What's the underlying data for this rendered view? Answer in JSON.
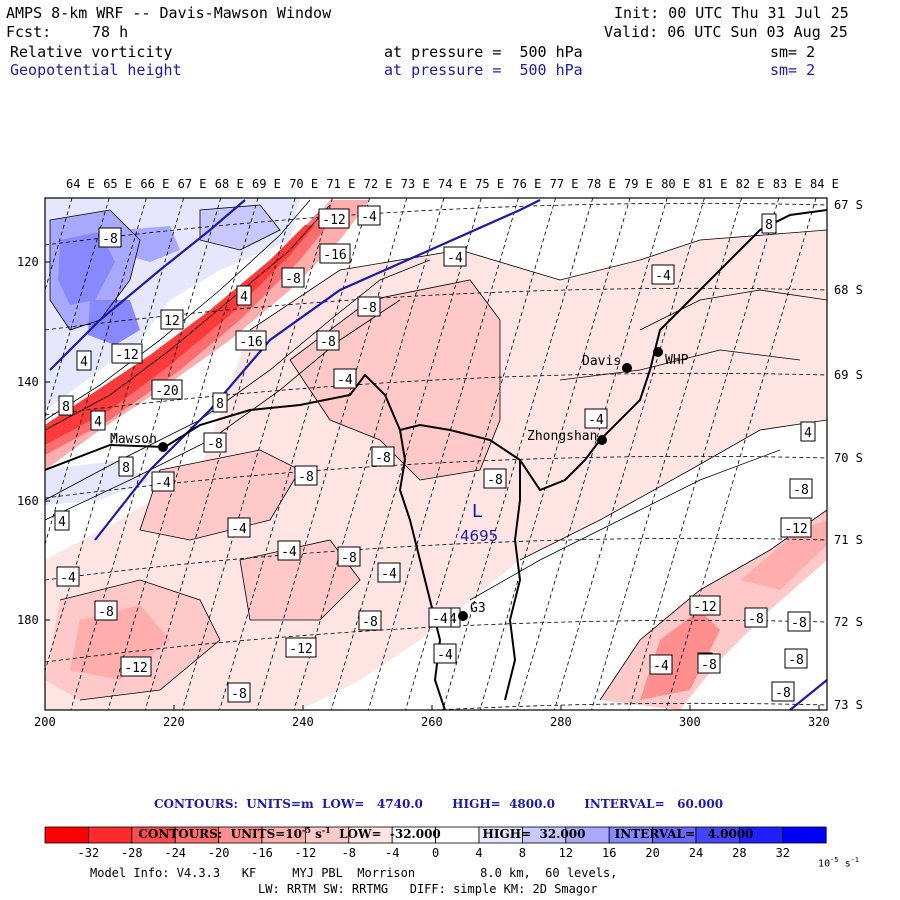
{
  "header": {
    "title": "AMPS 8-km WRF -- Davis-Mawson Window",
    "init": "Init: 00 UTC Thu 31 Jul 25",
    "fcst_label": "Fcst:",
    "fcst_value": "78 h",
    "valid": "Valid: 06 UTC Sun 03 Aug 25",
    "fields": [
      {
        "name": "Relative vorticity",
        "level": "at pressure =  500 hPa",
        "smooth": "sm= 2",
        "color": "#000000"
      },
      {
        "name": "Geopotential height",
        "level": "at pressure =  500 hPa",
        "smooth": "sm= 2",
        "color": "#1a1aa6"
      }
    ]
  },
  "map": {
    "lon_labels": [
      "64 E",
      "65 E",
      "66 E",
      "67 E",
      "68 E",
      "69 E",
      "70 E",
      "71 E",
      "72 E",
      "73 E",
      "74 E",
      "75 E",
      "76 E",
      "77 E",
      "78 E",
      "79 E",
      "80 E",
      "81 E",
      "82 E",
      "83 E",
      "84 E"
    ],
    "lat_labels": [
      "67 S",
      "68 S",
      "69 S",
      "70 S",
      "71 S",
      "72 S",
      "73 S"
    ],
    "x_ticks": [
      "200",
      "220",
      "240",
      "260",
      "280",
      "300",
      "320"
    ],
    "y_ticks": [
      "120",
      "140",
      "160",
      "180"
    ],
    "stations": [
      {
        "name": "Davis"
      },
      {
        "name": "WHP"
      },
      {
        "name": "Zhongshan"
      },
      {
        "name": "Mawson"
      },
      {
        "name": "G3"
      }
    ],
    "low_center": {
      "letter": "L",
      "value": "4695"
    },
    "contour_labels": [
      "-12",
      "-4",
      "-8",
      "-16",
      "-8",
      "-4",
      "4",
      "-4",
      "-8",
      "8",
      "12",
      "-16",
      "-12",
      "-8",
      "-4",
      "4",
      "8",
      "8",
      "4",
      "-20",
      "4",
      "-8",
      "-8",
      "-8",
      "-8",
      "8",
      "-4",
      "-4",
      "4",
      "-8",
      "-4",
      "-4",
      "-8",
      "-4",
      "-4",
      "-12",
      "-8",
      "-8",
      "-4",
      "-12",
      "-4",
      "-8",
      "-12",
      "-8",
      "-8",
      "-4",
      "4",
      "-12",
      "-8",
      "-8",
      "-8",
      "-4"
    ],
    "colors": {
      "low_contour": "#1a1aa6",
      "coast": "#000000",
      "grid": "#000000"
    }
  },
  "footer": {
    "contours1": "CONTOURS:  UNITS=m  LOW=   4740.0       HIGH=  4800.0       INTERVAL=   60.000",
    "contours2": "CONTOURS:  UNITS=10",
    "contours2_sup": "-5",
    "contours2_b": "s",
    "contours2_sup2": "-1",
    "contours2_rest": "  LOW=  -32.000          HIGH=  32.000       INTERVAL=   4.0000",
    "colorbar_labels": [
      "-32",
      "-28",
      "-24",
      "-20",
      "-16",
      "-12",
      "-8",
      "-4",
      "0",
      "4",
      "8",
      "12",
      "16",
      "20",
      "24",
      "28",
      "32"
    ],
    "colorbar_colors": [
      "#ff0000",
      "#ff2a2a",
      "#ff4d4d",
      "#ff6e6e",
      "#ff8f8f",
      "#ffadad",
      "#ffc9c9",
      "#ffe4e4",
      "#ffffff",
      "#ffffff",
      "#e6e6ff",
      "#c8c8ff",
      "#a8a8ff",
      "#8888ff",
      "#6868ff",
      "#4545ff",
      "#1f1fff",
      "#0000ff"
    ],
    "colorbar_unit": "10",
    "colorbar_unit_sup": "-5",
    "colorbar_unit_s": "s",
    "colorbar_unit_sup2": "-1",
    "model_info": "Model Info: V4.3.3   KF     MYJ PBL  Morrison         8.0 km,  60 levels,",
    "model_info2": "LW: RRTM SW: RRTMG   DIFF: simple KM: 2D Smagor"
  }
}
